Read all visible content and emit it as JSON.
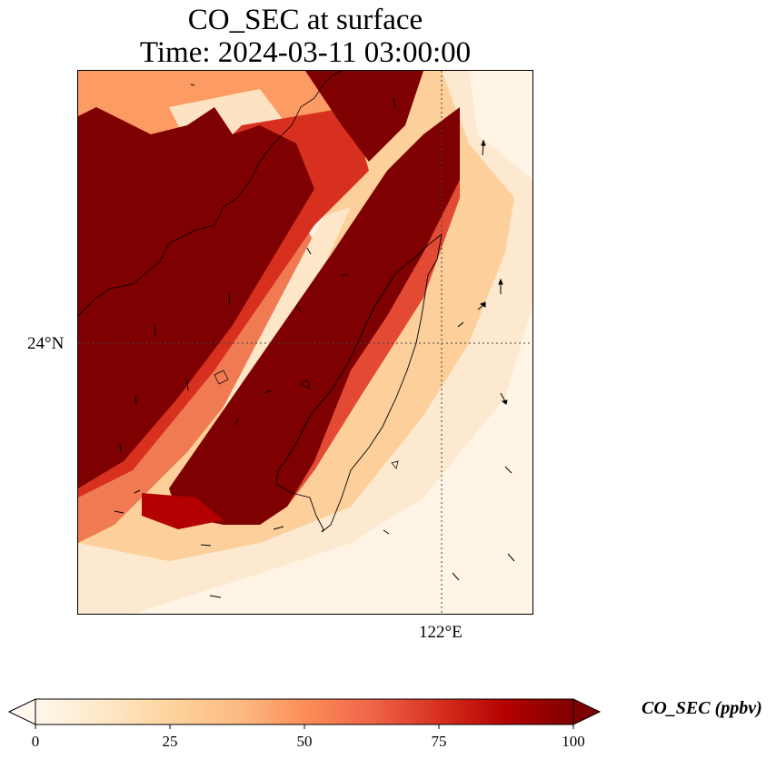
{
  "title": {
    "line1": "CO_SEC at surface",
    "line2": "Time: 2024-03-11 03:00:00"
  },
  "map": {
    "lat_tick": "24°N",
    "lon_tick": "122°E",
    "gridline_style": "dotted"
  },
  "colorbar": {
    "label": "CO_SEC (ppbv)",
    "ticks": [
      "0",
      "25",
      "50",
      "75",
      "100"
    ],
    "extend": "both",
    "colormap": [
      "#fff7ec",
      "#fee8c8",
      "#fdd49e",
      "#fdbb84",
      "#fc8d59",
      "#ef6548",
      "#d7301f",
      "#b30000",
      "#7f0000"
    ]
  }
}
